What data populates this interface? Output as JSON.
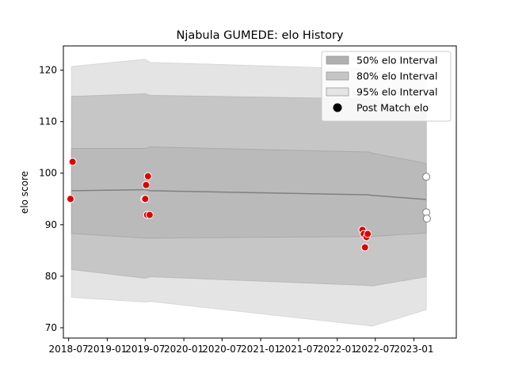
{
  "chart_data": {
    "type": "line",
    "title": "Njabula GUMEDE: elo History",
    "xlabel": "",
    "ylabel": "elo score",
    "xlim": [
      "2018-06-06",
      "2023-07-22"
    ],
    "ylim": [
      68,
      124.7
    ],
    "x_ticks": [
      "2018-07",
      "2019-01",
      "2019-07",
      "2020-01",
      "2020-07",
      "2021-01",
      "2021-07",
      "2022-01",
      "2022-07",
      "2023-01"
    ],
    "y_ticks": [
      70,
      80,
      90,
      100,
      110,
      120
    ],
    "grid": false,
    "legend_position": "top-right",
    "colors": {
      "band_50": "#b0b0b0",
      "band_80": "#c6c6c6",
      "band_95": "#e4e4e4",
      "mean_line": "#808080",
      "post_match_fill": "#dd0000",
      "post_match_edge": "#ffffff",
      "recent_fill": "#ffffff",
      "recent_edge": "#808080"
    },
    "legend": [
      {
        "label": "50% elo Interval",
        "kind": "band",
        "color": "#b0b0b0"
      },
      {
        "label": "80% elo Interval",
        "kind": "band",
        "color": "#c6c6c6"
      },
      {
        "label": "95% elo Interval",
        "kind": "band",
        "color": "#e4e4e4"
      },
      {
        "label": "Post Match elo",
        "kind": "dot",
        "color": "#000000"
      }
    ],
    "bands": {
      "x": [
        "2018-07-15",
        "2019-07-01",
        "2019-07-25",
        "2022-06-01",
        "2022-06-15",
        "2023-03-01"
      ],
      "mean": [
        96.6,
        96.8,
        96.6,
        95.8,
        95.7,
        94.9
      ],
      "p50_low": [
        88.3,
        87.4,
        87.4,
        87.7,
        87.7,
        88.4
      ],
      "p50_high": [
        104.8,
        104.8,
        105.1,
        104.1,
        103.9,
        101.9
      ],
      "p80_low": [
        81.3,
        79.6,
        79.9,
        78.2,
        78.1,
        79.9
      ],
      "p80_high": [
        114.9,
        115.4,
        115.1,
        114.4,
        114.3,
        112.1
      ],
      "p95_low": [
        75.9,
        75.0,
        75.1,
        70.4,
        70.3,
        73.5
      ],
      "p95_high": [
        120.7,
        122.1,
        121.5,
        120.2,
        120.1,
        117.9
      ]
    },
    "series": [
      {
        "name": "Post Match elo",
        "points": [
          {
            "x": "2018-07-10",
            "y": 95.0
          },
          {
            "x": "2018-07-20",
            "y": 102.2
          },
          {
            "x": "2019-06-27",
            "y": 95.0
          },
          {
            "x": "2019-07-01",
            "y": 95.0
          },
          {
            "x": "2019-07-05",
            "y": 97.7
          },
          {
            "x": "2019-07-10",
            "y": 91.9
          },
          {
            "x": "2019-07-14",
            "y": 99.4
          },
          {
            "x": "2019-07-22",
            "y": 91.9
          },
          {
            "x": "2022-05-01",
            "y": 89.0
          },
          {
            "x": "2022-05-07",
            "y": 88.2
          },
          {
            "x": "2022-05-13",
            "y": 85.6
          },
          {
            "x": "2022-05-20",
            "y": 87.6
          },
          {
            "x": "2022-05-26",
            "y": 88.2
          }
        ]
      },
      {
        "name": "Recent",
        "points": [
          {
            "x": "2023-03-01",
            "y": 99.3
          },
          {
            "x": "2023-03-01",
            "y": 92.4
          },
          {
            "x": "2023-03-04",
            "y": 91.2
          }
        ]
      }
    ]
  }
}
